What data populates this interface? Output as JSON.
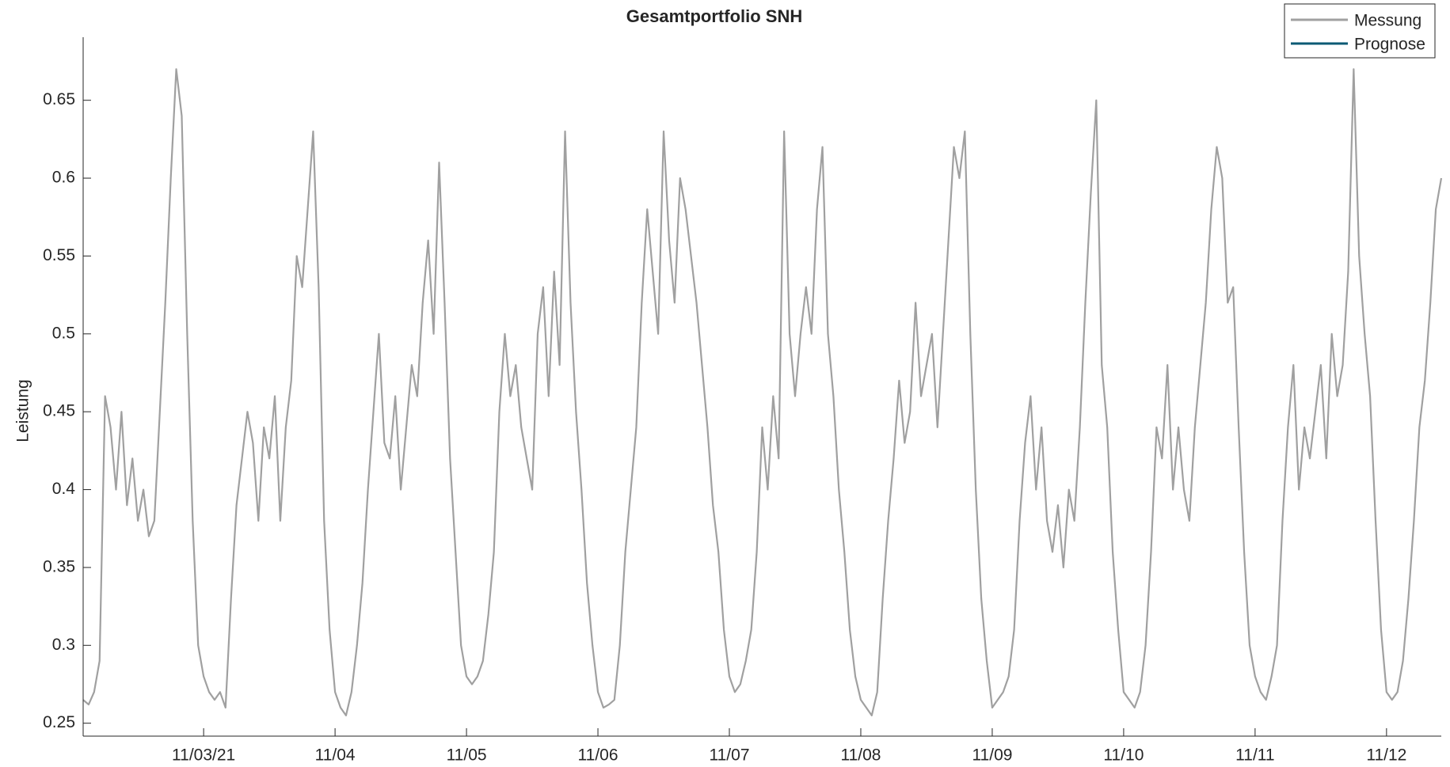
{
  "chart_data": {
    "type": "line",
    "title": "Gesamtportfolio SNH",
    "ylabel": "Leistung",
    "xlim": [
      0,
      248
    ],
    "xticks": [
      {
        "value": 22,
        "label": "11/03/21"
      },
      {
        "value": 46,
        "label": "11/04"
      },
      {
        "value": 70,
        "label": "11/05"
      },
      {
        "value": 94,
        "label": "11/06"
      },
      {
        "value": 118,
        "label": "11/07"
      },
      {
        "value": 142,
        "label": "11/08"
      },
      {
        "value": 166,
        "label": "11/09"
      },
      {
        "value": 190,
        "label": "11/10"
      },
      {
        "value": 214,
        "label": "11/11"
      },
      {
        "value": 238,
        "label": "11/12"
      }
    ],
    "ylim": [
      0.2417,
      0.6905
    ],
    "yticks": [
      0.25,
      0.3,
      0.35,
      0.4,
      0.45,
      0.5,
      0.55,
      0.6,
      0.65
    ],
    "legend": "upper right",
    "series": [
      {
        "name": "Messung",
        "color": "#a0a0a0",
        "values": [
          0.265,
          0.262,
          0.27,
          0.29,
          0.46,
          0.44,
          0.4,
          0.45,
          0.39,
          0.42,
          0.38,
          0.4,
          0.37,
          0.38,
          0.45,
          0.52,
          0.6,
          0.67,
          0.64,
          0.5,
          0.38,
          0.3,
          0.28,
          0.27,
          0.265,
          0.27,
          0.26,
          0.33,
          0.39,
          0.42,
          0.45,
          0.43,
          0.38,
          0.44,
          0.42,
          0.46,
          0.38,
          0.44,
          0.47,
          0.55,
          0.53,
          0.58,
          0.63,
          0.53,
          0.38,
          0.31,
          0.27,
          0.26,
          0.255,
          0.27,
          0.3,
          0.34,
          0.4,
          0.45,
          0.5,
          0.43,
          0.42,
          0.46,
          0.4,
          0.44,
          0.48,
          0.46,
          0.52,
          0.56,
          0.5,
          0.61,
          0.52,
          0.42,
          0.36,
          0.3,
          0.28,
          0.275,
          0.28,
          0.29,
          0.32,
          0.36,
          0.45,
          0.5,
          0.46,
          0.48,
          0.44,
          0.42,
          0.4,
          0.5,
          0.53,
          0.46,
          0.54,
          0.48,
          0.63,
          0.52,
          0.45,
          0.4,
          0.34,
          0.3,
          0.27,
          0.26,
          0.262,
          0.265,
          0.3,
          0.36,
          0.4,
          0.44,
          0.52,
          0.58,
          0.54,
          0.5,
          0.63,
          0.56,
          0.52,
          0.6,
          0.58,
          0.55,
          0.52,
          0.48,
          0.44,
          0.39,
          0.36,
          0.31,
          0.28,
          0.27,
          0.275,
          0.29,
          0.31,
          0.36,
          0.44,
          0.4,
          0.46,
          0.42,
          0.63,
          0.5,
          0.46,
          0.5,
          0.53,
          0.5,
          0.58,
          0.62,
          0.5,
          0.46,
          0.4,
          0.36,
          0.31,
          0.28,
          0.265,
          0.26,
          0.255,
          0.27,
          0.33,
          0.38,
          0.42,
          0.47,
          0.43,
          0.45,
          0.52,
          0.46,
          0.48,
          0.5,
          0.44,
          0.5,
          0.56,
          0.62,
          0.6,
          0.63,
          0.5,
          0.4,
          0.33,
          0.29,
          0.26,
          0.265,
          0.27,
          0.28,
          0.31,
          0.38,
          0.43,
          0.46,
          0.4,
          0.44,
          0.38,
          0.36,
          0.39,
          0.35,
          0.4,
          0.38,
          0.44,
          0.52,
          0.59,
          0.65,
          0.48,
          0.44,
          0.36,
          0.31,
          0.27,
          0.265,
          0.26,
          0.27,
          0.3,
          0.36,
          0.44,
          0.42,
          0.48,
          0.4,
          0.44,
          0.4,
          0.38,
          0.44,
          0.48,
          0.52,
          0.58,
          0.62,
          0.6,
          0.52,
          0.53,
          0.44,
          0.36,
          0.3,
          0.28,
          0.27,
          0.265,
          0.28,
          0.3,
          0.38,
          0.44,
          0.48,
          0.4,
          0.44,
          0.42,
          0.45,
          0.48,
          0.42,
          0.5,
          0.46,
          0.48,
          0.54,
          0.67,
          0.55,
          0.5,
          0.46,
          0.38,
          0.31,
          0.27,
          0.265,
          0.27,
          0.29,
          0.33,
          0.38,
          0.44,
          0.47,
          0.52,
          0.58,
          0.6
        ]
      },
      {
        "name": "Prognose",
        "color": "#0b5a74",
        "values": [
          null,
          null,
          null,
          null,
          null,
          null,
          null,
          null,
          null,
          null,
          null,
          null,
          null,
          null,
          null,
          null,
          null,
          null,
          null,
          null,
          null,
          null,
          null,
          null,
          null,
          null,
          null,
          null,
          null,
          null,
          null,
          null,
          null,
          null,
          null,
          null,
          null,
          null,
          null,
          null,
          null,
          null,
          null,
          null,
          null,
          null,
          null,
          null,
          null,
          null,
          null,
          null,
          null,
          null,
          null,
          null,
          null,
          null,
          null,
          null,
          null,
          null,
          null,
          null,
          null,
          null,
          null,
          null,
          null,
          null,
          null,
          null,
          null,
          null,
          null,
          null,
          null,
          null,
          null,
          null,
          null,
          null,
          null,
          null,
          null,
          null,
          null,
          null,
          null,
          null,
          null,
          null,
          null,
          null,
          null,
          null,
          null,
          null,
          null,
          null,
          null,
          null,
          null,
          null,
          null,
          null,
          null,
          null,
          null,
          null,
          null,
          null,
          null,
          null,
          null,
          null,
          null,
          null,
          null,
          null,
          null,
          null,
          null,
          null,
          null,
          null,
          null,
          null,
          null,
          null,
          null,
          null,
          null,
          null,
          null,
          null,
          null,
          null,
          null,
          null,
          null,
          null,
          null,
          null,
          null,
          null,
          null,
          null,
          null,
          null,
          null,
          null,
          null,
          null,
          null,
          null,
          null,
          null,
          null,
          null,
          null,
          null,
          null,
          null,
          null,
          null,
          null,
          null,
          null,
          null,
          null,
          null,
          null,
          null,
          null,
          null,
          null,
          null,
          null,
          null,
          null,
          null,
          null,
          null,
          null,
          null,
          null,
          null,
          null,
          null,
          null,
          null,
          null,
          null,
          null,
          null,
          null,
          null,
          null,
          null,
          null,
          null,
          null,
          null,
          null,
          null,
          null,
          null,
          null,
          null,
          null,
          null,
          null,
          null,
          null,
          null,
          null,
          null,
          null,
          null,
          null,
          null,
          null,
          null,
          null,
          null,
          null,
          null,
          null,
          null,
          null,
          null,
          null,
          null,
          null,
          null,
          null,
          null,
          null,
          null,
          null,
          null,
          null,
          null,
          null,
          null,
          null,
          null,
          null
        ]
      }
    ]
  }
}
